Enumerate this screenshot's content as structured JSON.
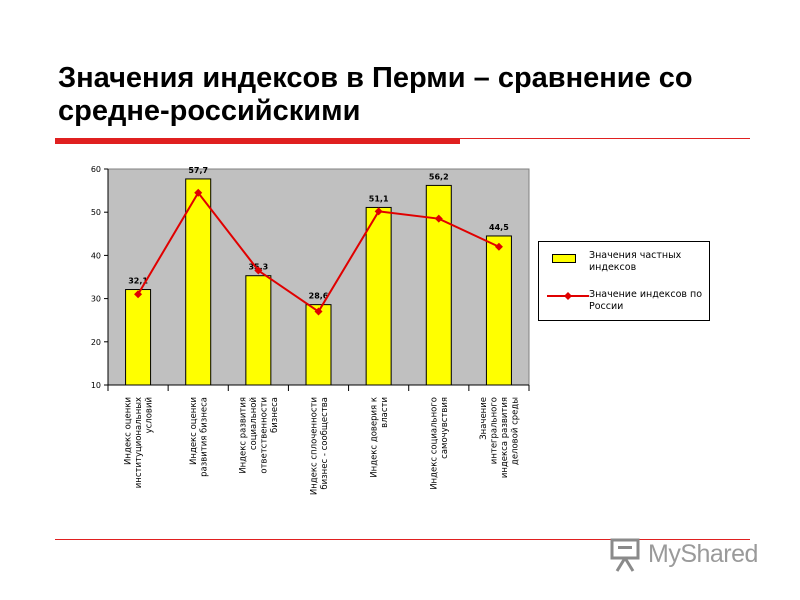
{
  "slide": {
    "title": "Значения индексов в Перми – сравнение со средне-российскими"
  },
  "colors": {
    "accent_red": "#e02020",
    "bar_fill": "#ffff00",
    "bar_stroke": "#000000",
    "plot_bg": "#c0c0c0",
    "line": "#e00000"
  },
  "chart_data": {
    "type": "bar",
    "categories": [
      "Индекс оценки институциональных условий",
      "Индекс оценки развития бизнеса",
      "Индекс развития социальной ответственности бизнеса",
      "Индекс сплоченности бизнес - сообщества",
      "Индекс доверия к власти",
      "Индекс социального самочувствия",
      "Значение интегрального индекса развития деловой среды"
    ],
    "series": [
      {
        "name": "Значения частных индексов",
        "type": "bar",
        "values": [
          32.1,
          57.7,
          35.3,
          28.6,
          51.1,
          56.2,
          44.5
        ],
        "labels": [
          "32,1",
          "57,7",
          "35,3",
          "28,6",
          "51,1",
          "56,2",
          "44,5"
        ]
      },
      {
        "name": "Значение индексов по России",
        "type": "line",
        "values": [
          31,
          54.5,
          36.5,
          27,
          50.2,
          48.5,
          42
        ]
      }
    ],
    "ylim": [
      10,
      60
    ],
    "yticks": [
      "10",
      "20",
      "30",
      "40",
      "50",
      "60"
    ],
    "legend": "right",
    "grid": false
  },
  "brand": {
    "name": "MyShared",
    "icon": "projector-board-icon"
  }
}
